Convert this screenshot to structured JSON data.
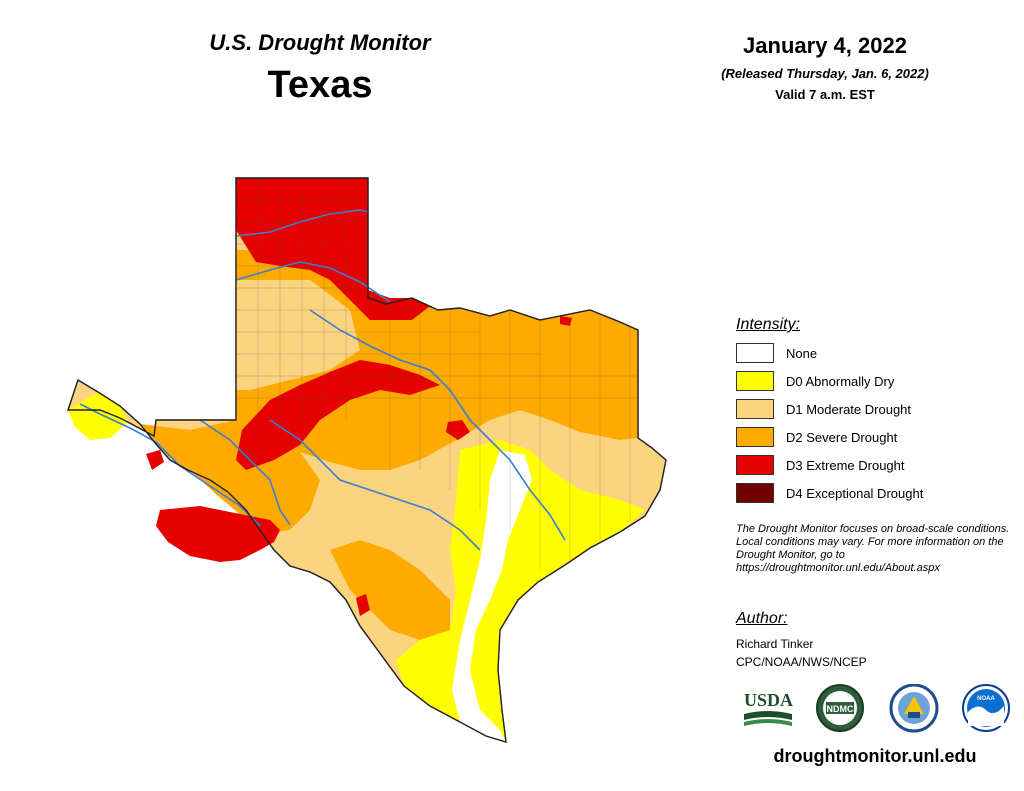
{
  "header": {
    "monitor_title": "U.S. Drought Monitor",
    "state": "Texas",
    "date": "January 4, 2022",
    "released": "(Released Thursday, Jan. 6, 2022)",
    "valid": "Valid 7 a.m. EST"
  },
  "legend": {
    "title": "Intensity:",
    "items": [
      {
        "label": "None",
        "color": "#ffffff"
      },
      {
        "label": "D0 Abnormally Dry",
        "color": "#ffff00"
      },
      {
        "label": "D1 Moderate Drought",
        "color": "#fcd37f"
      },
      {
        "label": "D2 Severe Drought",
        "color": "#ffaa00"
      },
      {
        "label": "D3 Extreme Drought",
        "color": "#e60000"
      },
      {
        "label": "D4 Exceptional Drought",
        "color": "#730000"
      }
    ]
  },
  "note": "The Drought Monitor focuses on broad-scale conditions. Local conditions may vary. For more information on the Drought Monitor, go to https://droughtmonitor.unl.edu/About.aspx",
  "author": {
    "title": "Author:",
    "name": "Richard Tinker",
    "org": "CPC/NOAA/NWS/NCEP"
  },
  "logos": [
    {
      "icon": "usda-logo",
      "text": "USDA"
    },
    {
      "icon": "ndmc-logo",
      "text": "NDMC"
    },
    {
      "icon": "commerce-seal-logo",
      "text": ""
    },
    {
      "icon": "noaa-logo",
      "text": "NOAA"
    }
  ],
  "website": "droughtmonitor.unl.edu"
}
